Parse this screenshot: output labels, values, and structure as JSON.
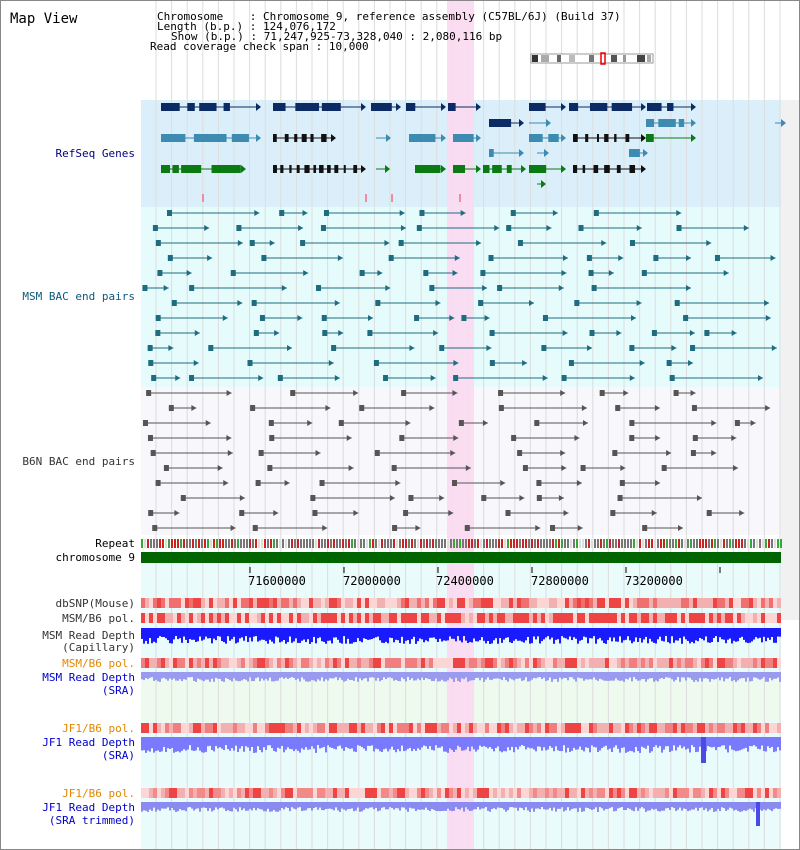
{
  "title": "Map View",
  "header": {
    "chromosome_key": "Chromosome",
    "chromosome_val": "Chromosome 9, reference assembly (C57BL/6J) (Build 37)",
    "length_key": "Length (b.p.)",
    "length_val": "124,076,172",
    "show_key": "Show (b.p.)",
    "show_val": "71,247,925-73,328,040 : 2,080,116 bp",
    "span_key": "Read coverage check span",
    "span_val": "10,000"
  },
  "tracks": {
    "refseq": "RefSeq Genes",
    "msm_bac": "MSM BAC end pairs",
    "b6n_bac": "B6N BAC end pairs",
    "repeat": "Repeat",
    "chromosome": "chromosome 9",
    "dbsnp": "dbSNP(Mouse)",
    "msm_b6_pol_cap": "MSM/B6 pol.",
    "msm_depth_cap_1": "MSM Read Depth",
    "msm_depth_cap_2": "(Capillary)",
    "msm_b6_pol_sra": "MSM/B6 pol.",
    "msm_depth_sra_1": "MSM Read Depth",
    "msm_depth_sra_2": "(SRA)",
    "jf1_pol": "JF1/B6 pol.",
    "jf1_depth_1": "JF1 Read Depth",
    "jf1_depth_2": "(SRA)",
    "jf1_pol_trim": "JF1/B6 pol.",
    "jf1_trim_1": "JF1 Read Depth",
    "jf1_trim_2": "(SRA trimmed)"
  },
  "axis_ticks": [
    "71600000",
    "72000000",
    "72400000",
    "72800000",
    "73200000"
  ],
  "colors": {
    "refseq_bg": "#dbeffa",
    "msm_bg": "#e6fcfc",
    "b6n_bg": "#f7f7fc",
    "highlight": "#fbd9f1",
    "gene_dark": "#0c2a63",
    "gene_mid": "#3d8bb0",
    "gene_green": "#0c7a12",
    "chromosome_bar": "#006400",
    "depth_blue": "#1a1aff",
    "depth_light": "#7a7aff"
  }
}
